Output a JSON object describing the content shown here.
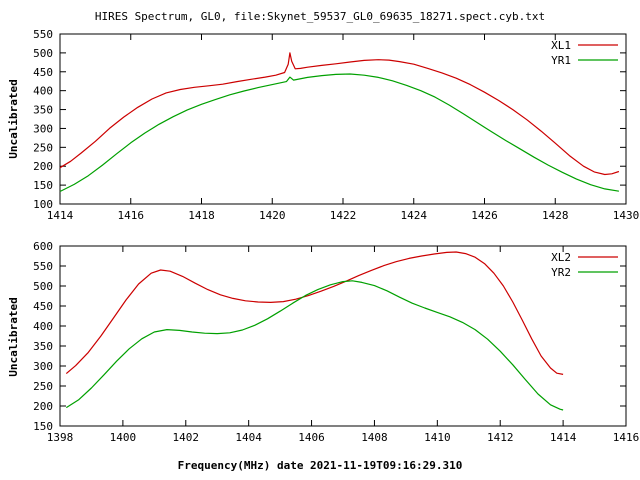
{
  "title": "HIRES Spectrum, GL0, file:Skynet_59537_GL0_69635_18271.spect.cyb.txt",
  "xlabel": "Frequency(MHz) date 2021-11-19T09:16:29.310",
  "colors": {
    "series_red": "#cc0000",
    "series_green": "#00a000",
    "axis": "#000000",
    "background": "#ffffff"
  },
  "chart_data": [
    {
      "type": "line",
      "title": "",
      "ylabel": "Uncalibrated",
      "xlim": [
        1414,
        1430
      ],
      "ylim": [
        100,
        550
      ],
      "xticks": [
        1414,
        1416,
        1418,
        1420,
        1422,
        1424,
        1426,
        1428,
        1430
      ],
      "yticks": [
        100,
        150,
        200,
        250,
        300,
        350,
        400,
        450,
        500,
        550
      ],
      "grid": false,
      "legend_position": "top-right",
      "series": [
        {
          "name": "XL1",
          "color": "#cc0000",
          "points": [
            [
              1414.0,
              196
            ],
            [
              1414.3,
              213
            ],
            [
              1414.6,
              235
            ],
            [
              1415.0,
              266
            ],
            [
              1415.4,
              300
            ],
            [
              1415.8,
              330
            ],
            [
              1416.2,
              356
            ],
            [
              1416.6,
              378
            ],
            [
              1417.0,
              394
            ],
            [
              1417.4,
              403
            ],
            [
              1417.8,
              409
            ],
            [
              1418.2,
              413
            ],
            [
              1418.6,
              417
            ],
            [
              1419.0,
              424
            ],
            [
              1419.4,
              430
            ],
            [
              1419.8,
              436
            ],
            [
              1420.1,
              441
            ],
            [
              1420.35,
              448
            ],
            [
              1420.45,
              470
            ],
            [
              1420.5,
              500
            ],
            [
              1420.55,
              478
            ],
            [
              1420.65,
              458
            ],
            [
              1420.8,
              459
            ],
            [
              1421.0,
              462
            ],
            [
              1421.4,
              467
            ],
            [
              1421.8,
              471
            ],
            [
              1422.2,
              476
            ],
            [
              1422.6,
              480
            ],
            [
              1423.0,
              482
            ],
            [
              1423.3,
              481
            ],
            [
              1423.6,
              477
            ],
            [
              1424.0,
              470
            ],
            [
              1424.4,
              459
            ],
            [
              1424.8,
              447
            ],
            [
              1425.2,
              433
            ],
            [
              1425.6,
              416
            ],
            [
              1426.0,
              396
            ],
            [
              1426.4,
              374
            ],
            [
              1426.8,
              350
            ],
            [
              1427.2,
              323
            ],
            [
              1427.6,
              293
            ],
            [
              1428.0,
              261
            ],
            [
              1428.4,
              228
            ],
            [
              1428.8,
              200
            ],
            [
              1429.1,
              185
            ],
            [
              1429.4,
              178
            ],
            [
              1429.6,
              180
            ],
            [
              1429.8,
              186
            ]
          ]
        },
        {
          "name": "YR1",
          "color": "#00a000",
          "points": [
            [
              1414.0,
              133
            ],
            [
              1414.4,
              152
            ],
            [
              1414.8,
              175
            ],
            [
              1415.2,
              203
            ],
            [
              1415.6,
              233
            ],
            [
              1416.0,
              262
            ],
            [
              1416.4,
              288
            ],
            [
              1416.8,
              311
            ],
            [
              1417.2,
              331
            ],
            [
              1417.6,
              349
            ],
            [
              1418.0,
              364
            ],
            [
              1418.4,
              377
            ],
            [
              1418.8,
              389
            ],
            [
              1419.2,
              399
            ],
            [
              1419.6,
              408
            ],
            [
              1420.0,
              416
            ],
            [
              1420.4,
              424
            ],
            [
              1420.5,
              436
            ],
            [
              1420.6,
              428
            ],
            [
              1421.0,
              435
            ],
            [
              1421.4,
              440
            ],
            [
              1421.8,
              443
            ],
            [
              1422.2,
              444
            ],
            [
              1422.6,
              441
            ],
            [
              1423.0,
              435
            ],
            [
              1423.4,
              426
            ],
            [
              1423.8,
              414
            ],
            [
              1424.2,
              400
            ],
            [
              1424.6,
              383
            ],
            [
              1425.0,
              362
            ],
            [
              1425.4,
              339
            ],
            [
              1425.8,
              315
            ],
            [
              1426.2,
              291
            ],
            [
              1426.6,
              268
            ],
            [
              1427.0,
              246
            ],
            [
              1427.4,
              224
            ],
            [
              1427.8,
              203
            ],
            [
              1428.2,
              184
            ],
            [
              1428.6,
              166
            ],
            [
              1429.0,
              151
            ],
            [
              1429.4,
              140
            ],
            [
              1429.8,
              134
            ]
          ]
        }
      ]
    },
    {
      "type": "line",
      "title": "",
      "ylabel": "Uncalibrated",
      "xlim": [
        1398,
        1416
      ],
      "ylim": [
        150,
        600
      ],
      "xticks": [
        1398,
        1400,
        1402,
        1404,
        1406,
        1408,
        1410,
        1412,
        1414,
        1416
      ],
      "yticks": [
        150,
        200,
        250,
        300,
        350,
        400,
        450,
        500,
        550,
        600
      ],
      "grid": false,
      "legend_position": "top-right",
      "series": [
        {
          "name": "XL2",
          "color": "#cc0000",
          "points": [
            [
              1398.2,
              281
            ],
            [
              1398.5,
              301
            ],
            [
              1398.9,
              334
            ],
            [
              1399.3,
              375
            ],
            [
              1399.7,
              420
            ],
            [
              1400.1,
              465
            ],
            [
              1400.5,
              505
            ],
            [
              1400.9,
              532
            ],
            [
              1401.2,
              540
            ],
            [
              1401.5,
              537
            ],
            [
              1401.9,
              524
            ],
            [
              1402.3,
              507
            ],
            [
              1402.7,
              491
            ],
            [
              1403.1,
              478
            ],
            [
              1403.5,
              469
            ],
            [
              1403.9,
              463
            ],
            [
              1404.3,
              460
            ],
            [
              1404.7,
              459
            ],
            [
              1405.1,
              461
            ],
            [
              1405.5,
              467
            ],
            [
              1405.9,
              476
            ],
            [
              1406.3,
              487
            ],
            [
              1406.7,
              499
            ],
            [
              1407.1,
              512
            ],
            [
              1407.5,
              526
            ],
            [
              1407.9,
              539
            ],
            [
              1408.3,
              551
            ],
            [
              1408.7,
              561
            ],
            [
              1409.1,
              569
            ],
            [
              1409.5,
              575
            ],
            [
              1409.9,
              580
            ],
            [
              1410.3,
              584
            ],
            [
              1410.6,
              585
            ],
            [
              1410.9,
              581
            ],
            [
              1411.2,
              572
            ],
            [
              1411.5,
              556
            ],
            [
              1411.8,
              532
            ],
            [
              1412.1,
              500
            ],
            [
              1412.4,
              460
            ],
            [
              1412.7,
              415
            ],
            [
              1413.0,
              368
            ],
            [
              1413.3,
              325
            ],
            [
              1413.6,
              295
            ],
            [
              1413.8,
              282
            ],
            [
              1414.0,
              279
            ]
          ]
        },
        {
          "name": "YR2",
          "color": "#00a000",
          "points": [
            [
              1398.2,
              196
            ],
            [
              1398.6,
              216
            ],
            [
              1399.0,
              245
            ],
            [
              1399.4,
              278
            ],
            [
              1399.8,
              312
            ],
            [
              1400.2,
              343
            ],
            [
              1400.6,
              368
            ],
            [
              1401.0,
              385
            ],
            [
              1401.4,
              391
            ],
            [
              1401.8,
              389
            ],
            [
              1402.2,
              385
            ],
            [
              1402.6,
              382
            ],
            [
              1403.0,
              381
            ],
            [
              1403.4,
              383
            ],
            [
              1403.8,
              390
            ],
            [
              1404.2,
              402
            ],
            [
              1404.6,
              418
            ],
            [
              1405.0,
              437
            ],
            [
              1405.4,
              457
            ],
            [
              1405.8,
              476
            ],
            [
              1406.2,
              491
            ],
            [
              1406.6,
              503
            ],
            [
              1407.0,
              511
            ],
            [
              1407.3,
              513
            ],
            [
              1407.6,
              509
            ],
            [
              1408.0,
              501
            ],
            [
              1408.4,
              488
            ],
            [
              1408.8,
              472
            ],
            [
              1409.2,
              457
            ],
            [
              1409.6,
              445
            ],
            [
              1410.0,
              434
            ],
            [
              1410.4,
              423
            ],
            [
              1410.8,
              409
            ],
            [
              1411.2,
              391
            ],
            [
              1411.6,
              367
            ],
            [
              1412.0,
              337
            ],
            [
              1412.4,
              303
            ],
            [
              1412.8,
              266
            ],
            [
              1413.2,
              230
            ],
            [
              1413.6,
              203
            ],
            [
              1413.9,
              192
            ],
            [
              1414.0,
              190
            ]
          ]
        }
      ]
    }
  ]
}
